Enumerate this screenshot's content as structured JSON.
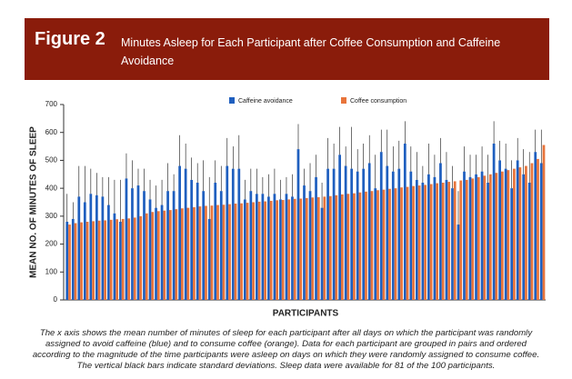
{
  "chart_data": {
    "type": "bar",
    "figure_label": "Figure 2",
    "title": "Minutes Asleep for Each Participant after Coffee Consumption and Caffeine Avoidance",
    "caption": "The x axis shows the mean number of minutes of sleep for each participant after all days on which the participant was randomly assigned to avoid caffeine (blue) and to consume coffee (orange). Data for each participant are grouped in pairs and ordered according to the magnitude of the time participants were asleep on days on which they were randomly assigned to consume coffee. The vertical black bars indicate standard deviations. Sleep data were available for 81 of the 100 participants.",
    "xlabel": "PARTICIPANTS",
    "ylabel": "MEAN NO. OF MINUTES OF SLEEP",
    "ylim": [
      0,
      700
    ],
    "yticks": [
      0,
      100,
      200,
      300,
      400,
      500,
      600,
      700
    ],
    "series": [
      {
        "name": "Caffeine avoidance",
        "color": "#1f5fbf",
        "values": [
          280,
          290,
          370,
          350,
          380,
          375,
          370,
          340,
          310,
          280,
          435,
          400,
          410,
          390,
          360,
          330,
          340,
          390,
          390,
          480,
          470,
          430,
          420,
          390,
          290,
          420,
          390,
          480,
          470,
          470,
          360,
          390,
          380,
          380,
          370,
          380,
          360,
          380,
          370,
          540,
          410,
          390,
          440,
          330,
          470,
          470,
          520,
          480,
          470,
          460,
          470,
          490,
          400,
          530,
          480,
          460,
          470,
          560,
          460,
          430,
          420,
          450,
          440,
          490,
          430,
          400,
          270,
          460,
          440,
          450,
          460,
          420,
          560,
          500,
          470,
          400,
          500,
          450,
          420,
          530,
          490
        ],
        "errors": [
          100,
          60,
          110,
          130,
          90,
          80,
          70,
          100,
          120,
          150,
          90,
          100,
          60,
          80,
          70,
          80,
          90,
          100,
          60,
          110,
          90,
          80,
          70,
          110,
          150,
          80,
          90,
          100,
          80,
          120,
          70,
          80,
          90,
          60,
          80,
          90,
          70,
          60,
          80,
          90,
          60,
          100,
          80,
          90,
          110,
          90,
          100,
          70,
          150,
          80,
          90,
          100,
          120,
          80,
          130,
          90,
          100,
          80,
          90,
          100,
          60,
          110,
          80,
          90,
          100,
          80,
          120,
          90,
          80,
          70,
          90,
          100,
          80,
          70,
          90,
          100,
          80,
          90,
          110,
          80,
          120
        ]
      },
      {
        "name": "Coffee consumption",
        "color": "#e8743b",
        "values": [
          270,
          275,
          278,
          280,
          282,
          284,
          285,
          287,
          289,
          290,
          292,
          295,
          300,
          310,
          315,
          318,
          320,
          322,
          325,
          328,
          330,
          332,
          335,
          337,
          338,
          340,
          341,
          343,
          345,
          346,
          348,
          350,
          352,
          353,
          355,
          357,
          358,
          360,
          362,
          363,
          365,
          367,
          368,
          370,
          372,
          375,
          378,
          380,
          382,
          385,
          388,
          390,
          393,
          395,
          398,
          400,
          403,
          405,
          408,
          410,
          412,
          415,
          418,
          420,
          423,
          425,
          428,
          430,
          435,
          440,
          445,
          450,
          455,
          460,
          465,
          470,
          475,
          480,
          490,
          505,
          555
        ]
      }
    ]
  }
}
